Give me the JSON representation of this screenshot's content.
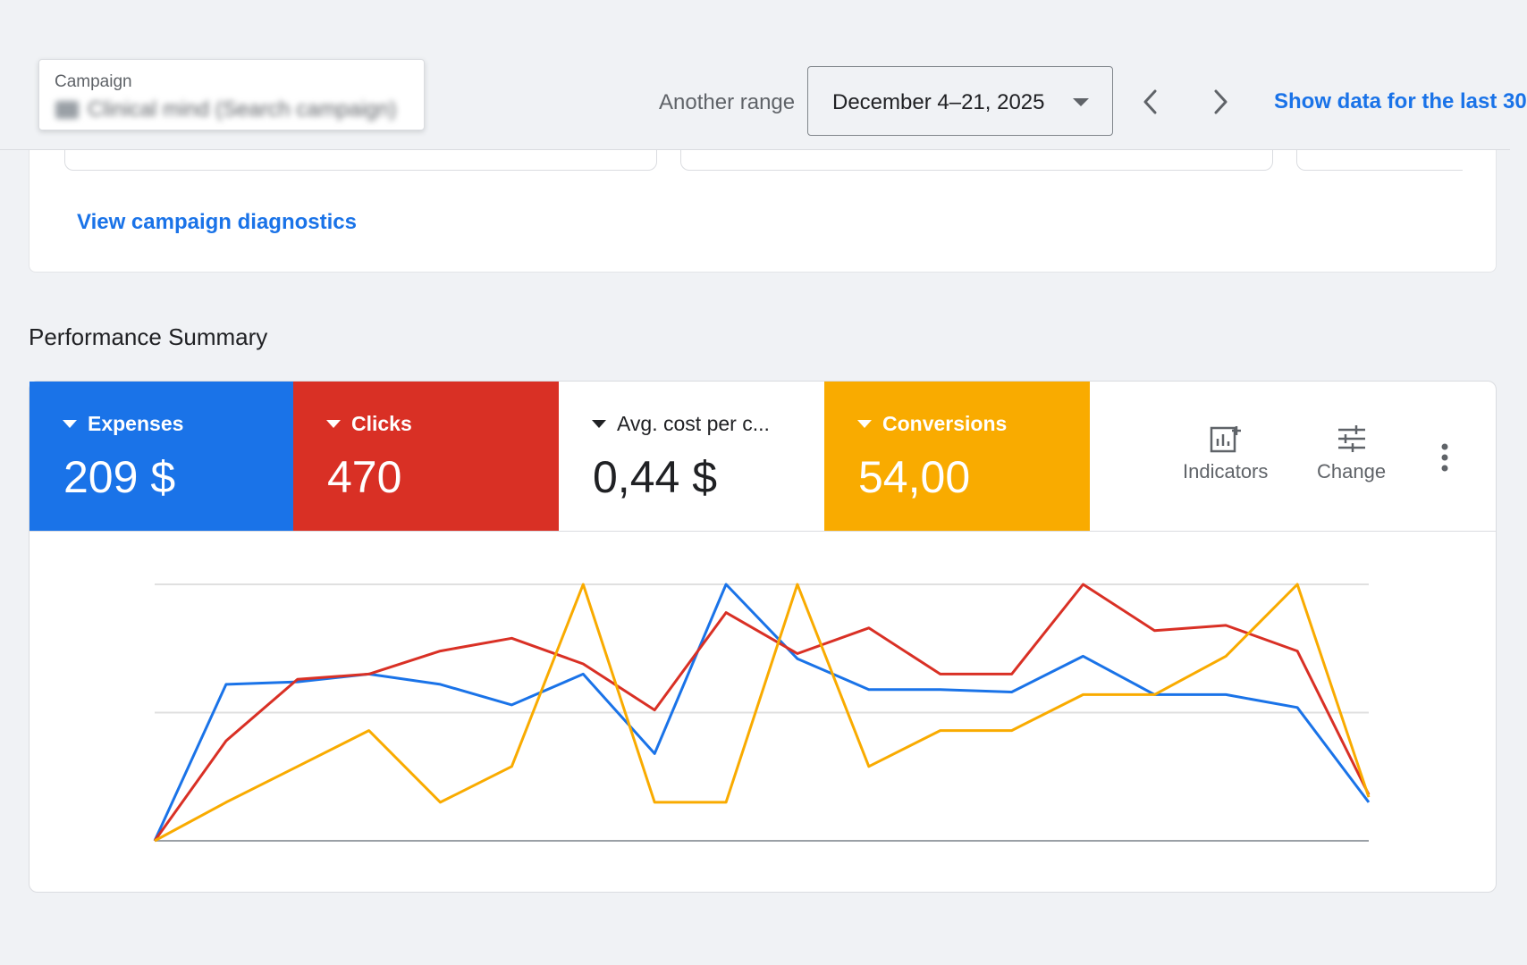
{
  "header": {
    "campaign_label": "Campaign",
    "campaign_value": "Clinical mind (Search campaign)",
    "range_label": "Another range",
    "date_range": "December 4–21, 2025",
    "show_last": "Show data for the last 30"
  },
  "diagnostics": {
    "link": "View campaign diagnostics"
  },
  "performance": {
    "title": "Performance Summary",
    "metrics": [
      {
        "name": "Expenses",
        "value": "209 $",
        "color": "#1a73e8"
      },
      {
        "name": "Clicks",
        "value": "470",
        "color": "#d93025"
      },
      {
        "name": "Avg. cost per c...",
        "value": "0,44 $",
        "color": "#ffffff"
      },
      {
        "name": "Conversions",
        "value": "54,00",
        "color": "#f9ab00"
      }
    ],
    "tools": {
      "indicators": "Indicators",
      "change": "Change"
    }
  },
  "chart_data": {
    "type": "line",
    "x": [
      1,
      2,
      3,
      4,
      5,
      6,
      7,
      8,
      9,
      10,
      11,
      12,
      13,
      14,
      15,
      16,
      17,
      18
    ],
    "ylim": [
      0,
      100
    ],
    "grid": true,
    "legend": "none (metric tiles above)",
    "series": [
      {
        "name": "Expenses",
        "color": "#1a73e8",
        "values": [
          0,
          61,
          62,
          65,
          61,
          53,
          65,
          34,
          100,
          71,
          59,
          59,
          58,
          72,
          57,
          57,
          52,
          15
        ]
      },
      {
        "name": "Clicks",
        "color": "#d93025",
        "values": [
          0,
          39,
          63,
          65,
          74,
          79,
          69,
          51,
          89,
          73,
          83,
          65,
          65,
          100,
          82,
          84,
          74,
          18
        ]
      },
      {
        "name": "Conversions",
        "color": "#f9ab00",
        "values": [
          0,
          15,
          29,
          43,
          15,
          29,
          100,
          15,
          15,
          100,
          29,
          43,
          43,
          57,
          57,
          72,
          100,
          17
        ]
      }
    ]
  }
}
